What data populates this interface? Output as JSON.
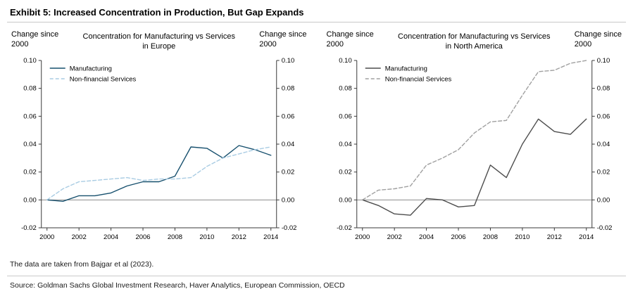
{
  "exhibit_title": "Exhibit 5: Increased Concentration in Production, But Gap Expands",
  "footnote": "The data are taken from Bajgar et al (2023).",
  "source_line": "Source: Goldman Sachs Global Investment Research, Haver Analytics, European Commission, OECD",
  "colors": {
    "europe_manufacturing": "#17506e",
    "europe_services": "#a9cce3",
    "na_manufacturing": "#4d4d4d",
    "na_services": "#a0a0a0",
    "zero_line": "#8c8c8c",
    "axis": "#3a3a3a"
  },
  "chart_data": [
    {
      "type": "line",
      "title": "Concentration for Manufacturing vs Services\nin Europe",
      "axis_caption_left": "Change since\n2000",
      "axis_caption_right": "Change since\n2000",
      "legend_position": "top-left",
      "grid": false,
      "ylim": [
        -0.02,
        0.1
      ],
      "yticks": [
        -0.02,
        0,
        0.02,
        0.04,
        0.06,
        0.08,
        0.1
      ],
      "x": [
        2000,
        2001,
        2002,
        2003,
        2004,
        2005,
        2006,
        2007,
        2008,
        2009,
        2010,
        2011,
        2012,
        2013,
        2014
      ],
      "xticks": [
        2000,
        2002,
        2004,
        2006,
        2008,
        2010,
        2012,
        2014
      ],
      "series": [
        {
          "id": "manufacturing",
          "name": "Manufacturing",
          "color": "#17506e",
          "dash": false,
          "values": [
            0,
            -0.001,
            0.003,
            0.003,
            0.005,
            0.01,
            0.013,
            0.013,
            0.017,
            0.038,
            0.037,
            0.03,
            0.039,
            0.036,
            0.032
          ]
        },
        {
          "id": "non-financial-services",
          "name": "Non-financial Services",
          "color": "#a9cce3",
          "dash": true,
          "values": [
            0,
            0.008,
            0.013,
            0.014,
            0.015,
            0.016,
            0.014,
            0.015,
            0.015,
            0.016,
            0.024,
            0.03,
            0.033,
            0.036,
            0.038
          ]
        }
      ]
    },
    {
      "type": "line",
      "title": "Concentration for Manufacturing vs Services\nin North America",
      "axis_caption_left": "Change since\n2000",
      "axis_caption_right": "Change since\n2000",
      "legend_position": "top-left",
      "grid": false,
      "ylim": [
        -0.02,
        0.1
      ],
      "yticks": [
        -0.02,
        0,
        0.02,
        0.04,
        0.06,
        0.08,
        0.1
      ],
      "x": [
        2000,
        2001,
        2002,
        2003,
        2004,
        2005,
        2006,
        2007,
        2008,
        2009,
        2010,
        2011,
        2012,
        2013,
        2014
      ],
      "xticks": [
        2000,
        2002,
        2004,
        2006,
        2008,
        2010,
        2012,
        2014
      ],
      "series": [
        {
          "id": "manufacturing",
          "name": "Manufacturing",
          "color": "#4d4d4d",
          "dash": false,
          "values": [
            0,
            -0.004,
            -0.01,
            -0.011,
            0.001,
            0,
            -0.005,
            -0.004,
            0.025,
            0.016,
            0.04,
            0.058,
            0.049,
            0.047,
            0.058
          ]
        },
        {
          "id": "non-financial-services",
          "name": "Non-financial Services",
          "color": "#a0a0a0",
          "dash": true,
          "values": [
            0,
            0.007,
            0.008,
            0.01,
            0.025,
            0.03,
            0.036,
            0.048,
            0.056,
            0.057,
            0.075,
            0.092,
            0.093,
            0.098,
            0.1
          ]
        }
      ]
    }
  ]
}
